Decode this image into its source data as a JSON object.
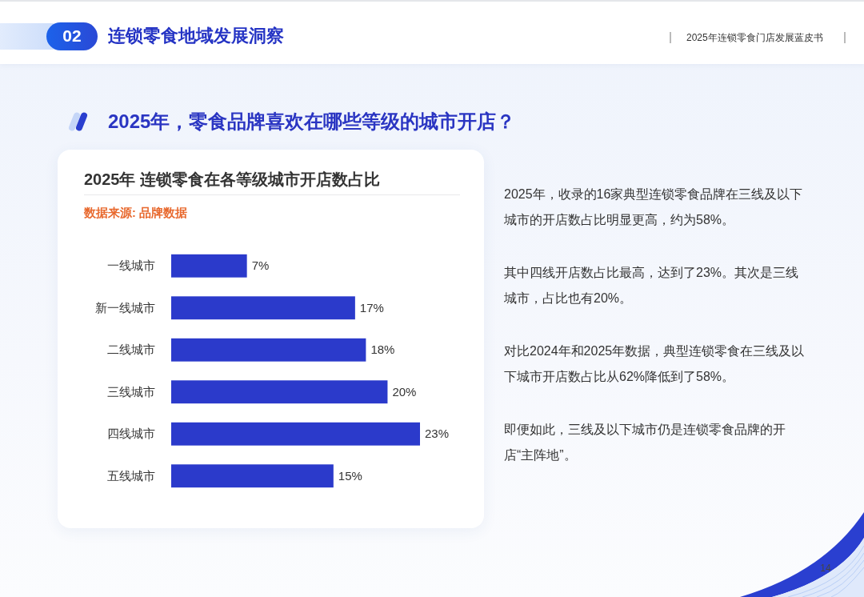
{
  "chart_data": {
    "type": "bar",
    "orientation": "horizontal",
    "title": "2025年 连锁零食在各等级城市开店数占比",
    "categories": [
      "一线城市",
      "新一线城市",
      "二线城市",
      "三线城市",
      "四线城市",
      "五线城市"
    ],
    "values": [
      7,
      17,
      18,
      20,
      23,
      15
    ],
    "value_labels": [
      "7%",
      "17%",
      "18%",
      "20%",
      "23%",
      "15%"
    ],
    "color": "#2b3acb",
    "annotations": [
      "02",
      "连锁零食地域发展洞察",
      "2025年连锁零食门店发展蓝皮书",
      "2025年，零食品牌喜欢在哪些等级的城市开店？",
      "数据来源: 品牌数据",
      "2025年，收录的16家典型连锁零食品牌在三线及以下城市的开店数占比明显更高，约为58%。",
      "其中四线开店数占比最高，达到了23%。其次是三线城市，占比也有20%。",
      "对比2024年和2025年数据，典型连锁零食在三线及以下城市开店数占比从62%降低到了58%。",
      "即便如此，三线及以下城市仍是连锁零食品牌的开店“主阵地”。",
      "14"
    ]
  }
}
